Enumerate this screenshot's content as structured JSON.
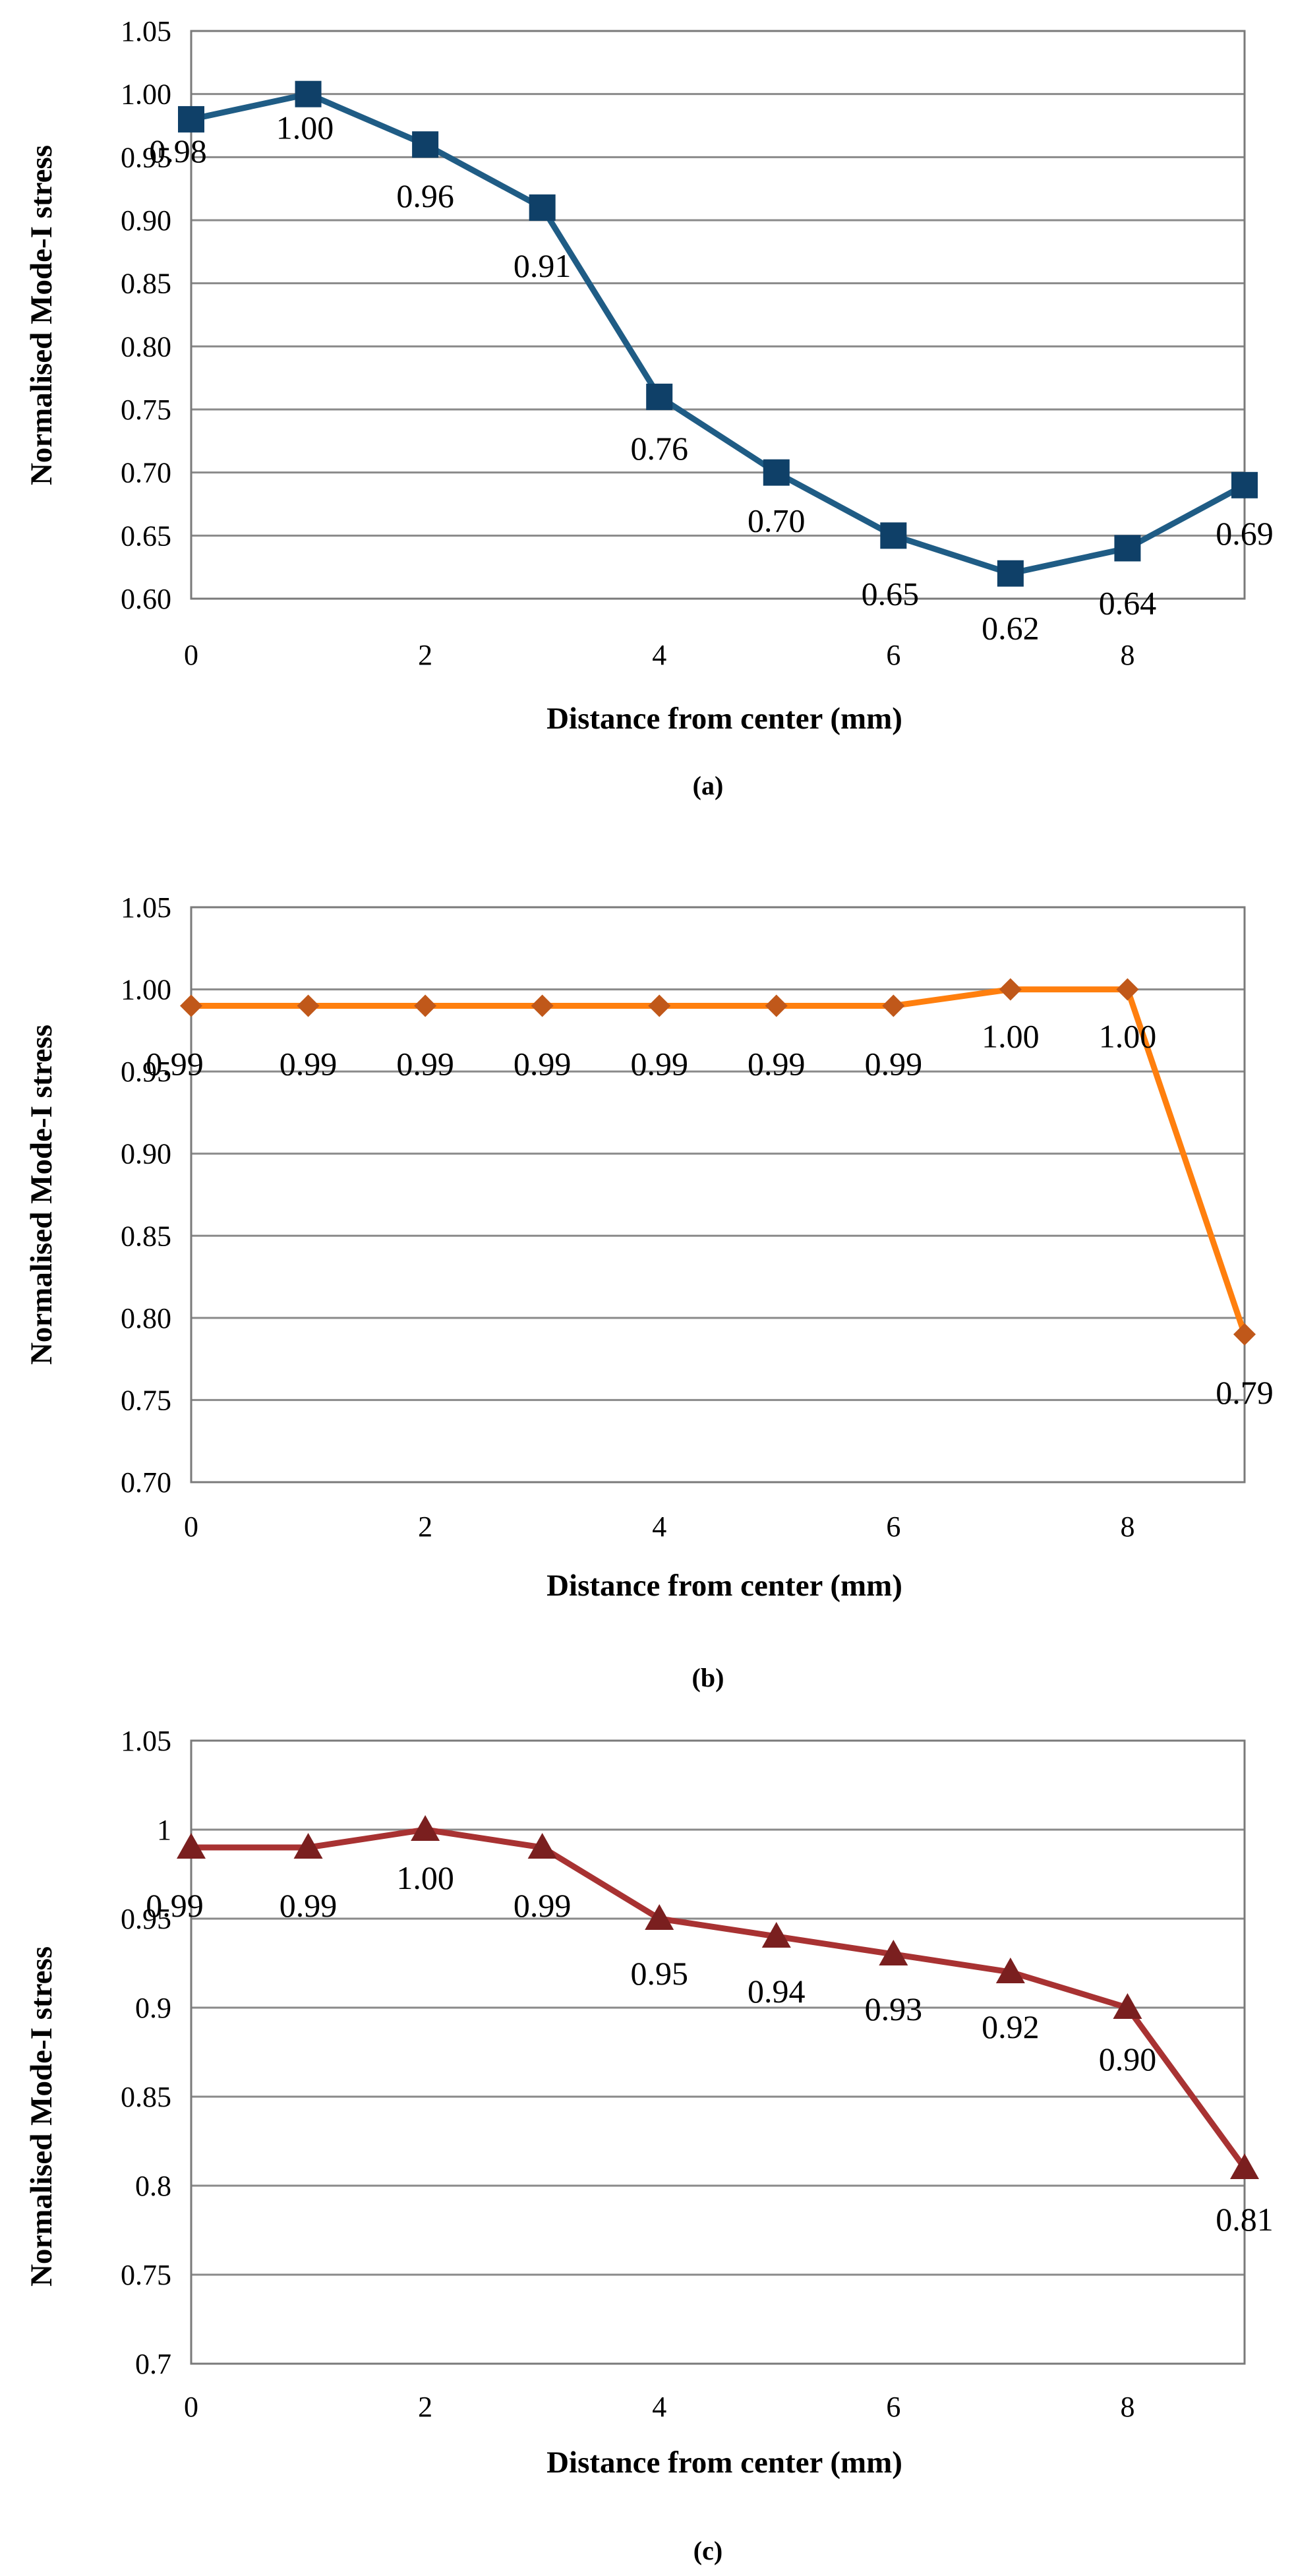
{
  "chart_data": [
    {
      "type": "line",
      "caption": "(a)",
      "title": "",
      "xlabel": "Distance from center (mm)",
      "ylabel": "Normalised Mode-I stress",
      "x": [
        0,
        1,
        2,
        3,
        4,
        5,
        6,
        7,
        8,
        9
      ],
      "xlim": [
        0,
        9
      ],
      "x_ticks": [
        0,
        2,
        4,
        6,
        8
      ],
      "ylim": [
        0.6,
        1.05
      ],
      "y_ticks": [
        0.6,
        0.65,
        0.7,
        0.75,
        0.8,
        0.85,
        0.9,
        0.95,
        1.0,
        1.05
      ],
      "y_tick_labels": [
        "0.60",
        "0.65",
        "0.70",
        "0.75",
        "0.80",
        "0.85",
        "0.90",
        "0.95",
        "1.00",
        "1.05"
      ],
      "grid": true,
      "series": [
        {
          "name": "",
          "marker": "square",
          "color": "#1F5C85",
          "marker_color": "#0F4068",
          "values": [
            0.98,
            1.0,
            0.96,
            0.91,
            0.76,
            0.7,
            0.65,
            0.62,
            0.64,
            0.69
          ],
          "data_labels": [
            "0.98",
            "1.00",
            "0.96",
            "0.91",
            "0.76",
            "0.70",
            "0.65",
            "0.62",
            "0.64",
            "0.69"
          ]
        }
      ]
    },
    {
      "type": "line",
      "caption": "(b)",
      "title": "",
      "xlabel": "Distance from center (mm)",
      "ylabel": "Normalised Mode-I stress",
      "x": [
        0,
        1,
        2,
        3,
        4,
        5,
        6,
        7,
        8,
        9
      ],
      "xlim": [
        0,
        9
      ],
      "x_ticks": [
        0,
        2,
        4,
        6,
        8
      ],
      "ylim": [
        0.7,
        1.05
      ],
      "y_ticks": [
        0.7,
        0.75,
        0.8,
        0.85,
        0.9,
        0.95,
        1.0,
        1.05
      ],
      "y_tick_labels": [
        "0.70",
        "0.75",
        "0.80",
        "0.85",
        "0.90",
        "0.95",
        "1.00",
        "1.05"
      ],
      "grid": true,
      "series": [
        {
          "name": "",
          "marker": "diamond",
          "color": "#FF7F0E",
          "marker_color": "#C0581A",
          "values": [
            0.99,
            0.99,
            0.99,
            0.99,
            0.99,
            0.99,
            0.99,
            1.0,
            1.0,
            0.79
          ],
          "data_labels": [
            "0.99",
            "0.99",
            "0.99",
            "0.99",
            "0.99",
            "0.99",
            "0.99",
            "1.00",
            "1.00",
            "0.79"
          ]
        }
      ]
    },
    {
      "type": "line",
      "caption": "(c)",
      "title": "",
      "xlabel": "Distance from center (mm)",
      "ylabel": "Normalised Mode-I stress",
      "x": [
        0,
        1,
        2,
        3,
        4,
        5,
        6,
        7,
        8,
        9
      ],
      "xlim": [
        0,
        9
      ],
      "x_ticks": [
        0,
        2,
        4,
        6,
        8
      ],
      "ylim": [
        0.7,
        1.05
      ],
      "y_ticks": [
        0.7,
        0.75,
        0.8,
        0.85,
        0.9,
        0.95,
        1.0,
        1.05
      ],
      "y_tick_labels": [
        "0.7",
        "0.75",
        "0.8",
        "0.85",
        "0.9",
        "0.95",
        "1",
        "1.05"
      ],
      "grid": true,
      "series": [
        {
          "name": "",
          "marker": "triangle",
          "color": "#A83232",
          "marker_color": "#7A1F1F",
          "values": [
            0.99,
            0.99,
            1.0,
            0.99,
            0.95,
            0.94,
            0.93,
            0.92,
            0.9,
            0.81
          ],
          "data_labels": [
            "0.99",
            "0.99",
            "1.00",
            "0.99",
            "0.95",
            "0.94",
            "0.93",
            "0.92",
            "0.90",
            "0.81"
          ]
        }
      ]
    }
  ]
}
